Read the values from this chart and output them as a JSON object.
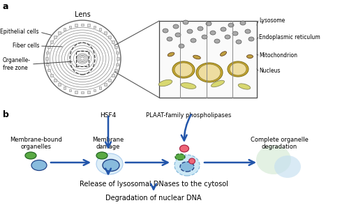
{
  "fig_width": 5.0,
  "fig_height": 3.14,
  "dpi": 100,
  "bg_color": "#ffffff",
  "arrow_color": "#2255aa",
  "panel_a": {
    "label": "a",
    "lens_title": "Lens",
    "labels_left": [
      "Epithelial cells",
      "Fiber cells",
      "Organelle-\nfree zone"
    ],
    "labels_right": [
      "Lysosome",
      "Endoplasmic reticulum",
      "Nucleus",
      "Mitochondrion"
    ]
  },
  "panel_b": {
    "label": "b",
    "hsf4_label": "HSF4",
    "plaat_label": "PLAAT-family phospholipases",
    "step_labels": [
      "Membrane-bound\norganelles",
      "Membrane\ndamage",
      "",
      "Complete organelle\ndegradation"
    ],
    "bottom_text1": "Release of lysosomal DNases to the cytosol",
    "bottom_text2": "Degradation of nuclear DNA",
    "green_color": "#5aaa44",
    "blue_color": "#88bbdd",
    "red_color": "#ee5566",
    "light_green": "#d0ecd0",
    "light_blue": "#c0ddf0",
    "dark_green_edge": "#226622",
    "dark_blue_edge": "#224488"
  }
}
